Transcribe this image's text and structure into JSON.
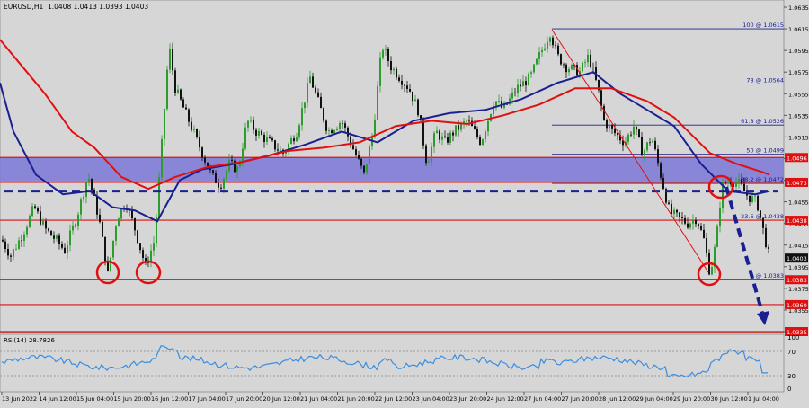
{
  "header": {
    "symbol": "EURUSD,H1",
    "ohlc": "1.0408 1.0413 1.0393 1.0403"
  },
  "colors": {
    "background": "#d6d6d6",
    "zone": "#7b78d8",
    "red_line": "#e01010",
    "blue_ma": "#1a2090",
    "red_ma": "#e01010",
    "dashed": "#1a2090",
    "rsi": "#3a8ee0",
    "bull_candle": "#2e9b2e",
    "bear_candle": "#111111"
  },
  "rsi": {
    "label": "RSI(14) 28.7826",
    "levels": [
      "100",
      "70",
      "30",
      "0"
    ]
  },
  "chart_data": {
    "type": "candlestick",
    "y_ticks": [
      "1.0635",
      "1.0615",
      "1.0595",
      "1.0575",
      "1.0555",
      "1.0535",
      "1.0515",
      "1.0495",
      "1.0475",
      "1.0455",
      "1.0435",
      "1.0415",
      "1.0395",
      "1.0375",
      "1.0355",
      "1.0335"
    ],
    "x_ticks": [
      "13 Jun 2022",
      "14 Jun 12:00",
      "15 Jun 04:00",
      "15 Jun 20:00",
      "16 Jun 12:00",
      "17 Jun 04:00",
      "17 Jun 20:00",
      "20 Jun 12:00",
      "21 Jun 04:00",
      "21 Jun 20:00",
      "22 Jun 12:00",
      "23 Jun 04:00",
      "23 Jun 20:00",
      "24 Jun 12:00",
      "27 Jun 04:00",
      "27 Jun 20:00",
      "28 Jun 12:00",
      "29 Jun 04:00",
      "29 Jun 20:00",
      "30 Jun 12:00",
      "1 Jul 04:00"
    ],
    "price_tags": [
      {
        "label": "1.0496",
        "price": 1.0496,
        "color": "#e01010"
      },
      {
        "label": "1.0473",
        "price": 1.0473,
        "color": "#e01010"
      },
      {
        "label": "1.0438",
        "price": 1.0438,
        "color": "#e01010"
      },
      {
        "label": "1.0403",
        "price": 1.0403,
        "color": "#111111"
      },
      {
        "label": "1.0383",
        "price": 1.0383,
        "color": "#e01010"
      },
      {
        "label": "1.0360",
        "price": 1.036,
        "color": "#e01010"
      },
      {
        "label": "1.0335",
        "price": 1.0335,
        "color": "#e01010"
      }
    ],
    "fibonacci": [
      {
        "label": "100 @ 1.0615",
        "price": 1.0615
      },
      {
        "label": "78 @ 1.0564",
        "price": 1.0564
      },
      {
        "label": "61.8 @ 1.0526",
        "price": 1.0526
      },
      {
        "label": "50 @ 1.0499",
        "price": 1.0499
      },
      {
        "label": "38.2 @ 1.0472",
        "price": 1.0472
      },
      {
        "label": "23.6 @ 1.0438",
        "price": 1.0438
      },
      {
        "label": "0 @ 1.0383",
        "price": 1.0383
      }
    ],
    "zone": {
      "top": 1.0496,
      "bottom": 1.0473
    },
    "red_levels": [
      1.0438,
      1.0383,
      1.036,
      1.0335
    ],
    "dashed_level": 1.0465
  }
}
